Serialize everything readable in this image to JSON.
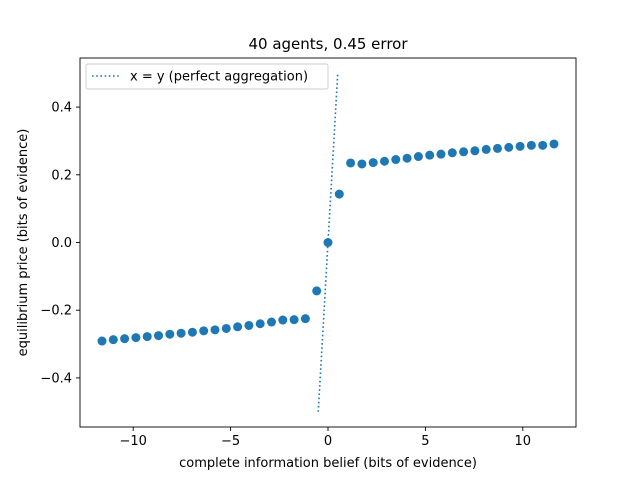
{
  "chart_data": {
    "type": "scatter",
    "title": "40 agents, 0.45 error",
    "xlabel": "complete information belief (bits of evidence)",
    "ylabel": "equilibrium price (bits of evidence)",
    "xlim": [
      -12.73,
      12.73
    ],
    "ylim": [
      -0.545,
      0.545
    ],
    "xticks": [
      -10,
      -5,
      0,
      5,
      10
    ],
    "xtick_labels": [
      "−10",
      "−5",
      "0",
      "5",
      "10"
    ],
    "yticks": [
      -0.4,
      -0.2,
      0.0,
      0.2,
      0.4
    ],
    "ytick_labels": [
      "−0.4",
      "−0.2",
      "0.0",
      "0.2",
      "0.4"
    ],
    "grid": false,
    "legend_position": "top-left",
    "marker_color": "#1f77b4",
    "series": [
      {
        "kind": "reference-line",
        "name": "x = y (perfect aggregation)",
        "style": "dotted",
        "color": "#1f77b4",
        "x": [
          -0.5,
          0.5
        ],
        "y": [
          -0.5,
          0.5
        ]
      },
      {
        "kind": "points",
        "x": [
          -11.6,
          -11.02,
          -10.44,
          -9.86,
          -9.28,
          -8.7,
          -8.12,
          -7.54,
          -6.96,
          -6.38,
          -5.8,
          -5.22,
          -4.64,
          -4.06,
          -3.48,
          -2.9,
          -2.32,
          -1.74,
          -1.16,
          -0.58,
          0.0,
          0.58,
          1.16,
          1.74,
          2.32,
          2.9,
          3.48,
          4.06,
          4.64,
          5.22,
          5.8,
          6.38,
          6.96,
          7.54,
          8.12,
          8.7,
          9.28,
          9.86,
          10.44,
          11.02,
          11.6
        ],
        "y": [
          -0.291,
          -0.287,
          -0.284,
          -0.281,
          -0.278,
          -0.275,
          -0.271,
          -0.268,
          -0.265,
          -0.261,
          -0.258,
          -0.254,
          -0.249,
          -0.245,
          -0.24,
          -0.235,
          -0.229,
          -0.228,
          -0.225,
          -0.143,
          0.0,
          0.143,
          0.235,
          0.232,
          0.236,
          0.24,
          0.245,
          0.249,
          0.254,
          0.258,
          0.261,
          0.265,
          0.268,
          0.271,
          0.275,
          0.278,
          0.281,
          0.284,
          0.287,
          0.287,
          0.291
        ]
      }
    ]
  }
}
